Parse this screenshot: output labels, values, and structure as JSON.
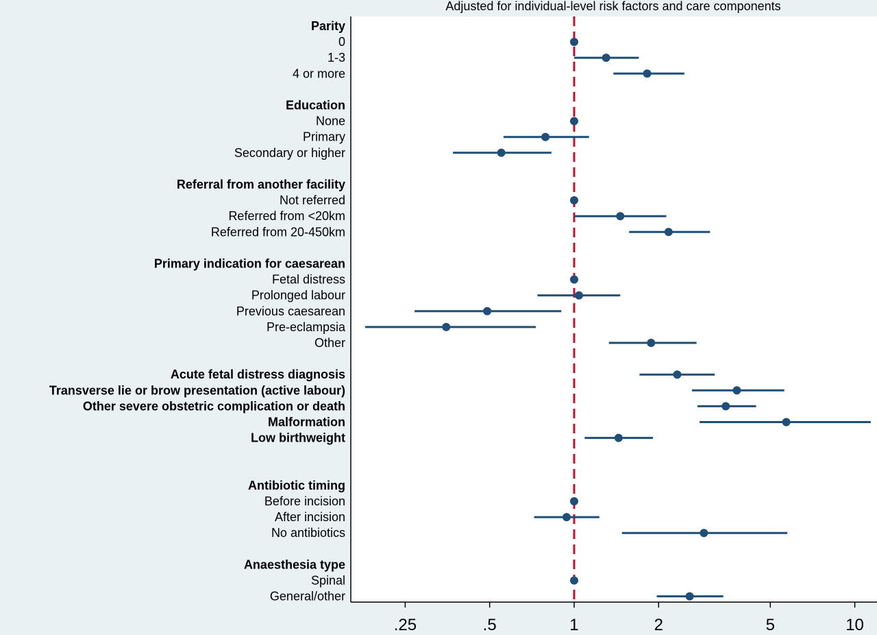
{
  "chart_data": {
    "type": "scatter",
    "subtitle": "Adjusted for individual-level risk factors and care components",
    "x_scale": "log",
    "xlim": [
      0.16,
      12
    ],
    "x_ticks": [
      {
        "value": 0.25,
        "label": ".25"
      },
      {
        "value": 0.5,
        "label": ".5"
      },
      {
        "value": 1,
        "label": "1"
      },
      {
        "value": 2,
        "label": "2"
      },
      {
        "value": 5,
        "label": "5"
      },
      {
        "value": 10,
        "label": "10"
      }
    ],
    "reference_line": {
      "x": 1,
      "style": "dashed",
      "color": "#c8102e"
    },
    "marker_color": "#1f4e79",
    "grid": false,
    "rows": [
      {
        "label": "Parity",
        "bold": true
      },
      {
        "label": "0",
        "est": 1
      },
      {
        "label": "1-3",
        "est": 1.3,
        "lo": 1.0,
        "hi": 1.7
      },
      {
        "label": "4 or more",
        "est": 1.82,
        "lo": 1.38,
        "hi": 2.47
      },
      {
        "label": "",
        "gap": true
      },
      {
        "label": "Education",
        "bold": true
      },
      {
        "label": "None",
        "est": 1
      },
      {
        "label": "Primary",
        "est": 0.79,
        "lo": 0.56,
        "hi": 1.13
      },
      {
        "label": "Secondary or higher",
        "est": 0.55,
        "lo": 0.37,
        "hi": 0.83
      },
      {
        "label": "",
        "gap": true
      },
      {
        "label": "Referral from another facility",
        "bold": true
      },
      {
        "label": "Not referred",
        "est": 1
      },
      {
        "label": "Referred from <20km",
        "est": 1.46,
        "lo": 1.0,
        "hi": 2.13
      },
      {
        "label": "Referred from 20-450km",
        "est": 2.17,
        "lo": 1.57,
        "hi": 3.05
      },
      {
        "label": "",
        "gap": true
      },
      {
        "label": "Primary indication for caesarean",
        "bold": true
      },
      {
        "label": "Fetal distress",
        "est": 1
      },
      {
        "label": "Prolonged labour",
        "est": 1.04,
        "lo": 0.74,
        "hi": 1.46
      },
      {
        "label": "Previous caesarean",
        "est": 0.49,
        "lo": 0.27,
        "hi": 0.9
      },
      {
        "label": "Pre-eclampsia",
        "est": 0.35,
        "lo": 0.18,
        "hi": 0.73
      },
      {
        "label": "Other",
        "est": 1.88,
        "lo": 1.33,
        "hi": 2.73
      },
      {
        "label": "",
        "gap": true
      },
      {
        "label": "Acute fetal distress diagnosis",
        "bold": true,
        "est": 2.33,
        "lo": 1.71,
        "hi": 3.17
      },
      {
        "label": "Transverse lie or brow presentation (active labour)",
        "bold": true,
        "est": 3.8,
        "lo": 2.63,
        "hi": 5.61
      },
      {
        "label": "Other severe obstetric complication or death",
        "bold": true,
        "est": 3.47,
        "lo": 2.75,
        "hi": 4.45
      },
      {
        "label": "Malformation",
        "bold": true,
        "est": 5.7,
        "lo": 2.8,
        "hi": 11.4
      },
      {
        "label": "Low birthweight",
        "bold": true,
        "est": 1.44,
        "lo": 1.09,
        "hi": 1.91
      },
      {
        "label": "",
        "gap": true
      },
      {
        "label": "",
        "gap": true
      },
      {
        "label": "Antibiotic timing",
        "bold": true
      },
      {
        "label": "Before incision",
        "est": 1
      },
      {
        "label": "After incision",
        "est": 0.94,
        "lo": 0.72,
        "hi": 1.23
      },
      {
        "label": "No antibiotics",
        "est": 2.9,
        "lo": 1.48,
        "hi": 5.75
      },
      {
        "label": "",
        "gap": true
      },
      {
        "label": "Anaesthesia type",
        "bold": true
      },
      {
        "label": "Spinal",
        "est": 1
      },
      {
        "label": "General/other",
        "est": 2.58,
        "lo": 1.97,
        "hi": 3.4
      }
    ]
  }
}
